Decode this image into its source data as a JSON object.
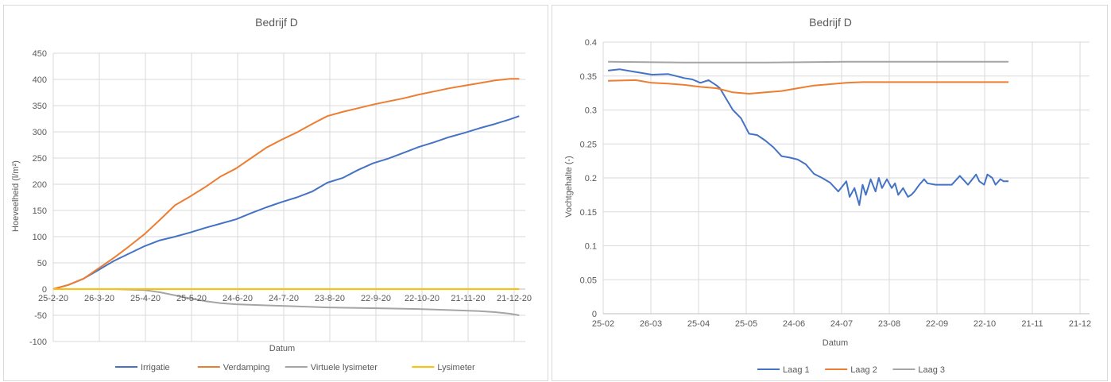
{
  "charts": [
    {
      "title": "Bedrijf D",
      "xlabel": "Datum",
      "ylabel": "Hoeveelheid (l/m²)",
      "x_tick_labels": [
        "25-2-20",
        "26-3-20",
        "25-4-20",
        "25-5-20",
        "24-6-20",
        "24-7-20",
        "23-8-20",
        "22-9-20",
        "22-10-20",
        "21-11-20",
        "21-12-20"
      ],
      "y_tick_labels": [
        "-100",
        "-50",
        "0",
        "50",
        "100",
        "150",
        "200",
        "250",
        "300",
        "350",
        "400",
        "450"
      ],
      "legend": [
        "Irrigatie",
        "Verdamping",
        "Virtuele lysimeter",
        "Lysimeter"
      ]
    },
    {
      "title": "Bedrijf D",
      "xlabel": "Datum",
      "ylabel": "Vochtgehalte (-)",
      "x_tick_labels": [
        "25-02",
        "26-03",
        "25-04",
        "25-05",
        "24-06",
        "24-07",
        "23-08",
        "22-09",
        "22-10",
        "21-11",
        "21-12"
      ],
      "y_tick_labels": [
        "0",
        "0.05",
        "0.1",
        "0.15",
        "0.2",
        "0.25",
        "0.3",
        "0.35",
        "0.4"
      ],
      "legend": [
        "Laag 1",
        "Laag 2",
        "Laag 3"
      ]
    }
  ],
  "chart_data": [
    {
      "type": "line",
      "title": "Bedrijf D",
      "xlabel": "Datum",
      "ylabel": "Hoeveelheid (l/m²)",
      "x_unit": "days since 25-2-20",
      "xlim": [
        0,
        310
      ],
      "ylim": [
        -100,
        450
      ],
      "grid": true,
      "legend_position": "bottom",
      "series": [
        {
          "name": "Irrigatie",
          "color": "#4472c4",
          "x": [
            0,
            10,
            20,
            30,
            40,
            50,
            60,
            70,
            80,
            90,
            100,
            110,
            120,
            130,
            140,
            150,
            160,
            170,
            180,
            190,
            200,
            210,
            220,
            230,
            240,
            250,
            260,
            270,
            280,
            290,
            300,
            306
          ],
          "y": [
            0,
            8,
            20,
            37,
            54,
            68,
            82,
            93,
            100,
            108,
            117,
            125,
            133,
            145,
            156,
            166,
            175,
            186,
            203,
            212,
            227,
            240,
            249,
            260,
            271,
            280,
            290,
            298,
            307,
            315,
            324,
            330
          ]
        },
        {
          "name": "Verdamping",
          "color": "#ed7d31",
          "x": [
            0,
            10,
            20,
            30,
            40,
            50,
            60,
            70,
            80,
            90,
            100,
            110,
            120,
            130,
            140,
            150,
            160,
            170,
            180,
            190,
            200,
            210,
            220,
            230,
            240,
            250,
            260,
            270,
            280,
            290,
            300,
            306
          ],
          "y": [
            0,
            8,
            20,
            40,
            60,
            82,
            105,
            132,
            160,
            177,
            195,
            215,
            230,
            250,
            270,
            285,
            299,
            315,
            330,
            338,
            345,
            352,
            358,
            364,
            371,
            377,
            383,
            388,
            393,
            398,
            401,
            401
          ]
        },
        {
          "name": "Virtuele lysimeter",
          "color": "#a5a5a5",
          "x": [
            0,
            40,
            60,
            70,
            80,
            90,
            100,
            110,
            120,
            140,
            160,
            180,
            200,
            220,
            240,
            260,
            280,
            290,
            300,
            306
          ],
          "y": [
            0,
            0,
            -2,
            -6,
            -12,
            -18,
            -23,
            -27,
            -29,
            -31,
            -33,
            -35,
            -36,
            -37,
            -38,
            -40,
            -42,
            -44,
            -47,
            -50
          ]
        },
        {
          "name": "Lysimeter",
          "color": "#ffc000",
          "x": [
            0,
            306
          ],
          "y": [
            0,
            0
          ]
        }
      ]
    },
    {
      "type": "line",
      "title": "Bedrijf D",
      "xlabel": "Datum",
      "ylabel": "Vochtgehalte (-)",
      "x_unit": "days since 25-02",
      "xlim": [
        0,
        300
      ],
      "ylim": [
        0,
        0.4
      ],
      "grid": true,
      "legend_position": "bottom",
      "series": [
        {
          "name": "Laag 1",
          "color": "#4472c4",
          "x": [
            3,
            10,
            20,
            30,
            40,
            50,
            55,
            60,
            65,
            70,
            72,
            75,
            80,
            85,
            90,
            95,
            100,
            105,
            110,
            115,
            120,
            125,
            130,
            135,
            140,
            145,
            150,
            152,
            155,
            158,
            160,
            162,
            165,
            168,
            170,
            172,
            175,
            178,
            180,
            182,
            185,
            188,
            190,
            192,
            195,
            198,
            200,
            205,
            210,
            215,
            220,
            225,
            230,
            232,
            235,
            237,
            240,
            242,
            245,
            247,
            250
          ],
          "y": [
            0.358,
            0.36,
            0.356,
            0.352,
            0.353,
            0.347,
            0.345,
            0.34,
            0.344,
            0.336,
            0.332,
            0.32,
            0.3,
            0.288,
            0.265,
            0.263,
            0.255,
            0.245,
            0.232,
            0.23,
            0.227,
            0.22,
            0.206,
            0.2,
            0.193,
            0.18,
            0.195,
            0.172,
            0.185,
            0.16,
            0.19,
            0.175,
            0.198,
            0.18,
            0.2,
            0.185,
            0.198,
            0.185,
            0.192,
            0.175,
            0.185,
            0.172,
            0.175,
            0.18,
            0.19,
            0.198,
            0.192,
            0.19,
            0.19,
            0.19,
            0.203,
            0.19,
            0.205,
            0.195,
            0.19,
            0.205,
            0.2,
            0.19,
            0.198,
            0.195,
            0.195
          ]
        },
        {
          "name": "Laag 2",
          "color": "#ed7d31",
          "x": [
            3,
            20,
            30,
            40,
            50,
            60,
            70,
            80,
            90,
            100,
            110,
            120,
            130,
            140,
            150,
            160,
            170,
            180,
            190,
            200,
            220,
            240,
            250
          ],
          "y": [
            0.343,
            0.344,
            0.34,
            0.339,
            0.337,
            0.334,
            0.332,
            0.326,
            0.324,
            0.326,
            0.328,
            0.332,
            0.336,
            0.338,
            0.34,
            0.341,
            0.341,
            0.341,
            0.341,
            0.341,
            0.341,
            0.341,
            0.341
          ]
        },
        {
          "name": "Laag 3",
          "color": "#a5a5a5",
          "x": [
            3,
            50,
            100,
            150,
            200,
            250
          ],
          "y": [
            0.371,
            0.37,
            0.37,
            0.371,
            0.371,
            0.371
          ]
        }
      ]
    }
  ]
}
